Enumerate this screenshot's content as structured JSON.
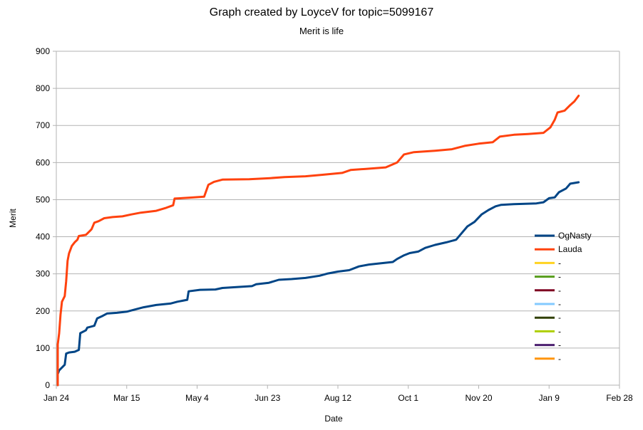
{
  "chart_data": {
    "type": "line",
    "title": "Graph created by LoyceV for topic=5099167",
    "subtitle": "Merit is life",
    "xlabel": "Date",
    "ylabel": "Merit",
    "ylim": [
      0,
      900
    ],
    "yticks": [
      0,
      100,
      200,
      300,
      400,
      500,
      600,
      700,
      800,
      900
    ],
    "xlim": [
      "2019-01-24",
      "2020-02-28"
    ],
    "xticks": [
      "Jan 24",
      "Mar 15",
      "May 4",
      "Jun 23",
      "Aug 12",
      "Oct 1",
      "Nov 20",
      "Jan 9",
      "Feb 28"
    ],
    "xtick_dates": [
      "2019-01-24",
      "2019-03-15",
      "2019-05-04",
      "2019-06-23",
      "2019-08-12",
      "2019-10-01",
      "2019-11-20",
      "2020-01-09",
      "2020-02-28"
    ],
    "grid": "horizontal",
    "legend_position": "right",
    "series": [
      {
        "name": "OgNasty",
        "color": "#004586",
        "points": [
          [
            "2019-01-25",
            0
          ],
          [
            "2019-01-25",
            30
          ],
          [
            "2019-01-26",
            40
          ],
          [
            "2019-01-30",
            55
          ],
          [
            "2019-01-31",
            85
          ],
          [
            "2019-02-02",
            88
          ],
          [
            "2019-02-06",
            90
          ],
          [
            "2019-02-09",
            95
          ],
          [
            "2019-02-10",
            140
          ],
          [
            "2019-02-14",
            148
          ],
          [
            "2019-02-15",
            155
          ],
          [
            "2019-02-20",
            160
          ],
          [
            "2019-02-22",
            180
          ],
          [
            "2019-02-26",
            187
          ],
          [
            "2019-03-01",
            193
          ],
          [
            "2019-03-08",
            195
          ],
          [
            "2019-03-15",
            198
          ],
          [
            "2019-03-20",
            203
          ],
          [
            "2019-03-27",
            210
          ],
          [
            "2019-04-05",
            216
          ],
          [
            "2019-04-15",
            220
          ],
          [
            "2019-04-20",
            225
          ],
          [
            "2019-04-27",
            230
          ],
          [
            "2019-04-28",
            253
          ],
          [
            "2019-05-06",
            257
          ],
          [
            "2019-05-17",
            258
          ],
          [
            "2019-05-22",
            262
          ],
          [
            "2019-05-31",
            264
          ],
          [
            "2019-06-12",
            267
          ],
          [
            "2019-06-15",
            272
          ],
          [
            "2019-06-24",
            276
          ],
          [
            "2019-07-01",
            284
          ],
          [
            "2019-07-10",
            286
          ],
          [
            "2019-07-20",
            289
          ],
          [
            "2019-07-30",
            295
          ],
          [
            "2019-08-05",
            301
          ],
          [
            "2019-08-12",
            306
          ],
          [
            "2019-08-20",
            310
          ],
          [
            "2019-08-27",
            320
          ],
          [
            "2019-09-03",
            325
          ],
          [
            "2019-09-10",
            328
          ],
          [
            "2019-09-20",
            332
          ],
          [
            "2019-09-23",
            340
          ],
          [
            "2019-09-28",
            350
          ],
          [
            "2019-10-02",
            356
          ],
          [
            "2019-10-08",
            360
          ],
          [
            "2019-10-13",
            370
          ],
          [
            "2019-10-20",
            378
          ],
          [
            "2019-10-28",
            385
          ],
          [
            "2019-11-04",
            392
          ],
          [
            "2019-11-08",
            410
          ],
          [
            "2019-11-12",
            428
          ],
          [
            "2019-11-17",
            440
          ],
          [
            "2019-11-22",
            460
          ],
          [
            "2019-11-27",
            472
          ],
          [
            "2019-12-02",
            482
          ],
          [
            "2019-12-06",
            486
          ],
          [
            "2019-12-15",
            488
          ],
          [
            "2019-12-31",
            490
          ],
          [
            "2020-01-05",
            493
          ],
          [
            "2020-01-09",
            504
          ],
          [
            "2020-01-13",
            506
          ],
          [
            "2020-01-16",
            520
          ],
          [
            "2020-01-21",
            530
          ],
          [
            "2020-01-24",
            543
          ],
          [
            "2020-01-30",
            547
          ]
        ]
      },
      {
        "name": "Lauda",
        "color": "#ff420e",
        "points": [
          [
            "2019-01-25",
            0
          ],
          [
            "2019-01-25",
            110
          ],
          [
            "2019-01-26",
            140
          ],
          [
            "2019-01-27",
            190
          ],
          [
            "2019-01-28",
            225
          ],
          [
            "2019-01-30",
            240
          ],
          [
            "2019-01-31",
            280
          ],
          [
            "2019-02-01",
            335
          ],
          [
            "2019-02-02",
            355
          ],
          [
            "2019-02-04",
            375
          ],
          [
            "2019-02-06",
            385
          ],
          [
            "2019-02-08",
            392
          ],
          [
            "2019-02-09",
            402
          ],
          [
            "2019-02-14",
            405
          ],
          [
            "2019-02-18",
            420
          ],
          [
            "2019-02-20",
            438
          ],
          [
            "2019-02-23",
            442
          ],
          [
            "2019-02-27",
            450
          ],
          [
            "2019-03-05",
            453
          ],
          [
            "2019-03-12",
            455
          ],
          [
            "2019-03-18",
            460
          ],
          [
            "2019-03-25",
            465
          ],
          [
            "2019-04-05",
            470
          ],
          [
            "2019-04-12",
            478
          ],
          [
            "2019-04-17",
            485
          ],
          [
            "2019-04-18",
            503
          ],
          [
            "2019-04-28",
            505
          ],
          [
            "2019-05-09",
            508
          ],
          [
            "2019-05-12",
            540
          ],
          [
            "2019-05-16",
            548
          ],
          [
            "2019-05-22",
            554
          ],
          [
            "2019-06-10",
            555
          ],
          [
            "2019-06-25",
            558
          ],
          [
            "2019-07-05",
            561
          ],
          [
            "2019-07-20",
            563
          ],
          [
            "2019-08-01",
            567
          ],
          [
            "2019-08-15",
            572
          ],
          [
            "2019-08-21",
            580
          ],
          [
            "2019-09-01",
            583
          ],
          [
            "2019-09-15",
            587
          ],
          [
            "2019-09-23",
            600
          ],
          [
            "2019-09-28",
            622
          ],
          [
            "2019-10-05",
            628
          ],
          [
            "2019-10-20",
            632
          ],
          [
            "2019-11-01",
            636
          ],
          [
            "2019-11-10",
            645
          ],
          [
            "2019-11-20",
            651
          ],
          [
            "2019-11-30",
            655
          ],
          [
            "2019-12-05",
            670
          ],
          [
            "2019-12-15",
            675
          ],
          [
            "2019-12-25",
            677
          ],
          [
            "2020-01-05",
            680
          ],
          [
            "2020-01-10",
            695
          ],
          [
            "2020-01-13",
            715
          ],
          [
            "2020-01-15",
            735
          ],
          [
            "2020-01-20",
            740
          ],
          [
            "2020-01-24",
            755
          ],
          [
            "2020-01-27",
            765
          ],
          [
            "2020-01-30",
            780
          ]
        ]
      }
    ],
    "legend": [
      {
        "label": "OgNasty",
        "color": "#004586"
      },
      {
        "label": "Lauda",
        "color": "#ff420e"
      },
      {
        "label": "-",
        "color": "#ffd320"
      },
      {
        "label": "-",
        "color": "#579d1c"
      },
      {
        "label": "-",
        "color": "#7e0021"
      },
      {
        "label": "-",
        "color": "#83caff"
      },
      {
        "label": "-",
        "color": "#314004"
      },
      {
        "label": "-",
        "color": "#aecf00"
      },
      {
        "label": "-",
        "color": "#4b1f6f"
      },
      {
        "label": "-",
        "color": "#ff950e"
      }
    ],
    "colors": {
      "grid": "#b3b3b3",
      "axis": "#b3b3b3"
    }
  }
}
